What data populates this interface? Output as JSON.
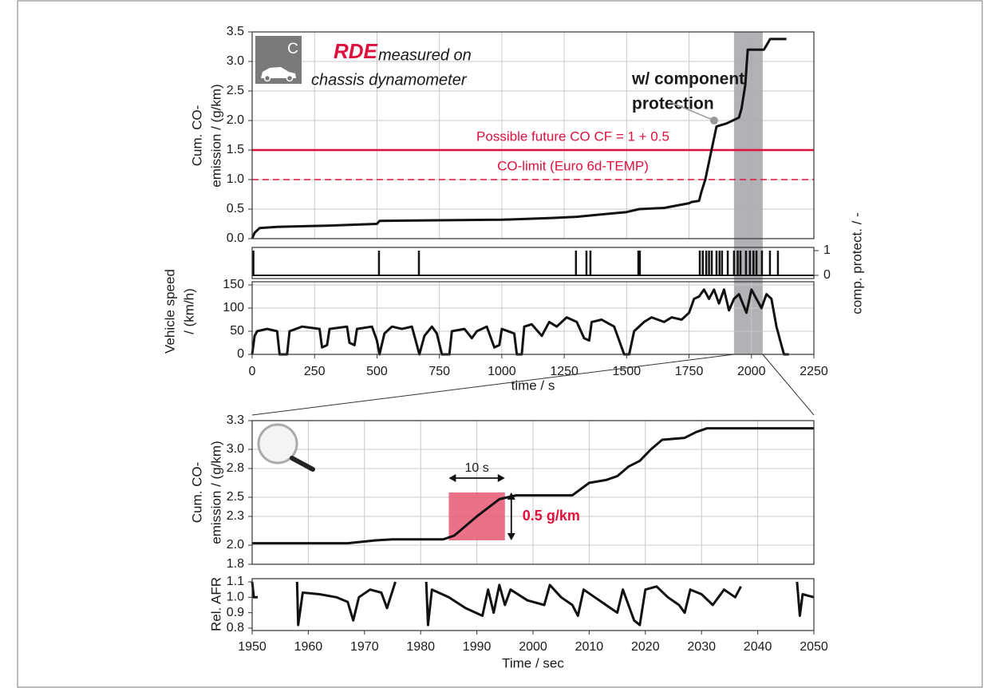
{
  "chart_data": [
    {
      "type": "line",
      "ylabel": [
        "Cum. CO-",
        "emission / (g/km)"
      ],
      "badge": "C",
      "annotations": [
        "RDE",
        "measured on",
        "chassis dynamometer",
        "w/ component",
        "protection"
      ],
      "xlim": [
        0,
        2250
      ],
      "ylim": [
        0,
        3.5
      ],
      "yticks": [
        {
          "value": 0,
          "label": "0.0"
        },
        0.5,
        {
          "value": 1,
          "label": "1.0"
        },
        1.5,
        {
          "value": 2,
          "label": "2.0"
        },
        2.5,
        {
          "value": 3,
          "label": "3.0"
        },
        3.5
      ],
      "grid": true,
      "color": "#111111",
      "highlight": {
        "x": [
          1930,
          2045
        ],
        "color": "#a9a9ae"
      },
      "reference_lines": [
        {
          "label": "Possible future CO CF = 1 + 0.5",
          "value": 1.5,
          "color": "#e0103c",
          "dashed": false
        },
        {
          "label": "CO-limit (Euro 6d-TEMP)",
          "value": 1,
          "color": "#e0103c",
          "dashed": true
        }
      ],
      "x": [
        0,
        10,
        30,
        100,
        300,
        500,
        510,
        700,
        1000,
        1200,
        1300,
        1500,
        1550,
        1650,
        1750,
        1760,
        1790,
        1800,
        1815,
        1840,
        1860,
        1900,
        1925,
        1950,
        1960,
        1975,
        1985,
        2050,
        2075,
        2140
      ],
      "values": [
        0,
        0.1,
        0.18,
        0.2,
        0.22,
        0.25,
        0.3,
        0.31,
        0.32,
        0.35,
        0.37,
        0.45,
        0.5,
        0.52,
        0.6,
        0.62,
        0.64,
        0.8,
        1.0,
        1.5,
        1.9,
        1.95,
        2.0,
        2.05,
        2.2,
        2.6,
        3.2,
        3.2,
        3.38,
        3.38
      ]
    },
    {
      "type": "events",
      "ylabel": "comp. protect. / -",
      "xlim": [
        0,
        2250
      ],
      "ylim": [
        0,
        1
      ],
      "yticks": [
        0,
        1
      ],
      "color": "#111111",
      "x": [
        5,
        508,
        668,
        1297,
        1339,
        1355,
        1547,
        1553,
        1793,
        1805,
        1819,
        1830,
        1841,
        1860,
        1872,
        1882,
        1905,
        1930,
        1945,
        1956,
        1978,
        1994,
        2008,
        2020,
        2042,
        2074,
        2106
      ],
      "values": [
        1,
        1,
        1,
        1,
        1,
        1,
        1,
        1,
        1,
        1,
        1,
        1,
        1,
        1,
        1,
        1,
        1,
        1,
        1,
        1,
        1,
        1,
        1,
        1,
        1,
        1,
        1
      ]
    },
    {
      "type": "line",
      "ylabel": [
        "Vehicle speed",
        "/ (km/h)"
      ],
      "xlabel": "time / s",
      "xlim": [
        0,
        2250
      ],
      "xticks": [
        0,
        250,
        500,
        750,
        1000,
        1250,
        1500,
        1750,
        2000,
        2250
      ],
      "ylim": [
        0,
        150
      ],
      "yticks": [
        0,
        50,
        100,
        150
      ],
      "grid": true,
      "color": "#111111",
      "x": [
        0,
        10,
        20,
        60,
        100,
        110,
        140,
        150,
        200,
        270,
        280,
        300,
        310,
        380,
        390,
        410,
        420,
        480,
        500,
        510,
        530,
        560,
        600,
        640,
        660,
        670,
        690,
        720,
        740,
        760,
        790,
        800,
        850,
        880,
        900,
        940,
        970,
        990,
        1000,
        1050,
        1060,
        1080,
        1090,
        1120,
        1160,
        1190,
        1220,
        1260,
        1300,
        1330,
        1350,
        1360,
        1400,
        1450,
        1480,
        1490,
        1510,
        1530,
        1570,
        1600,
        1650,
        1680,
        1720,
        1750,
        1770,
        1790,
        1810,
        1830,
        1850,
        1870,
        1890,
        1910,
        1930,
        1950,
        1980,
        2000,
        2020,
        2040,
        2060,
        2080,
        2100,
        2120,
        2130,
        2150
      ],
      "values": [
        0,
        40,
        50,
        55,
        50,
        0,
        0,
        50,
        60,
        55,
        15,
        20,
        55,
        60,
        25,
        20,
        55,
        60,
        30,
        0,
        45,
        60,
        55,
        60,
        20,
        0,
        40,
        60,
        45,
        0,
        0,
        50,
        55,
        35,
        50,
        60,
        15,
        20,
        55,
        45,
        0,
        0,
        60,
        65,
        40,
        70,
        60,
        80,
        70,
        35,
        30,
        70,
        75,
        60,
        15,
        0,
        0,
        50,
        70,
        80,
        70,
        80,
        75,
        90,
        120,
        125,
        140,
        120,
        140,
        110,
        140,
        95,
        120,
        130,
        90,
        140,
        120,
        100,
        130,
        120,
        60,
        20,
        0,
        0
      ]
    },
    {
      "type": "line",
      "ylabel": [
        "Cum. CO-",
        "emission / (g/km)"
      ],
      "xlim": [
        1950,
        2050
      ],
      "ylim": [
        1.8,
        3.3
      ],
      "yticks": [
        1.8,
        {
          "value": 2,
          "label": "2.0"
        },
        2.3,
        2.5,
        2.8,
        {
          "value": 3,
          "label": "3.0"
        },
        3.3
      ],
      "grid": true,
      "color": "#111111",
      "span": {
        "x": [
          1985,
          1995
        ],
        "y": [
          2.05,
          2.55
        ],
        "color": "#e9627c",
        "x_label": "10 s",
        "y_label": "0.5 g/km"
      },
      "x": [
        1950,
        1967,
        1972,
        1975,
        1984,
        1986,
        1990,
        1994,
        1997,
        2007,
        2010,
        2013,
        2015,
        2017,
        2019,
        2021,
        2023,
        2027,
        2029,
        2031,
        2050
      ],
      "values": [
        2.02,
        2.02,
        2.05,
        2.06,
        2.06,
        2.1,
        2.3,
        2.48,
        2.52,
        2.52,
        2.65,
        2.68,
        2.72,
        2.82,
        2.88,
        3.0,
        3.1,
        3.12,
        3.18,
        3.22,
        3.22
      ]
    },
    {
      "type": "line",
      "ylabel": "Rel. AFR",
      "xlabel": "Time / sec",
      "xlim": [
        1950,
        2050
      ],
      "xticks": [
        1950,
        1960,
        1970,
        1980,
        1990,
        2000,
        2010,
        2020,
        2030,
        2040,
        2050
      ],
      "ylim": [
        0.8,
        1.1
      ],
      "yticks": [
        0.8,
        0.9,
        {
          "value": 1,
          "label": "1.0"
        },
        1.1
      ],
      "color": "#111111",
      "x": [
        1950,
        1950.3,
        1951,
        1955,
        1958,
        1958.2,
        1959,
        1962,
        1965,
        1967,
        1968,
        1969,
        1971,
        1973,
        1974,
        1975.5,
        1978,
        1981,
        1981.3,
        1982,
        1985,
        1988,
        1991,
        1992,
        1993,
        1994,
        1995,
        1996,
        1999,
        2002,
        2003,
        2005,
        2007,
        2008,
        2009,
        2011,
        2013,
        2015,
        2016,
        2018,
        2019,
        2020,
        2022,
        2024,
        2026,
        2027,
        2028,
        2030,
        2032,
        2034,
        2036,
        2037,
        2040,
        2047,
        2047.5,
        2048,
        2050
      ],
      "values": [
        1.1,
        1.0,
        1.0,
        null,
        1.1,
        0.82,
        1.03,
        1.02,
        1.0,
        0.97,
        0.85,
        1.0,
        1.05,
        1.03,
        0.93,
        1.1,
        null,
        1.1,
        0.82,
        1.05,
        1.0,
        0.93,
        0.88,
        1.05,
        0.9,
        1.08,
        0.95,
        1.05,
        0.98,
        0.95,
        1.08,
        1.0,
        0.95,
        0.88,
        1.05,
        1.0,
        0.95,
        0.9,
        1.05,
        0.85,
        0.82,
        1.05,
        1.07,
        1.0,
        0.95,
        0.9,
        1.05,
        1.02,
        0.95,
        1.05,
        1.0,
        1.07,
        null,
        1.1,
        0.88,
        1.02,
        1.0
      ]
    }
  ]
}
